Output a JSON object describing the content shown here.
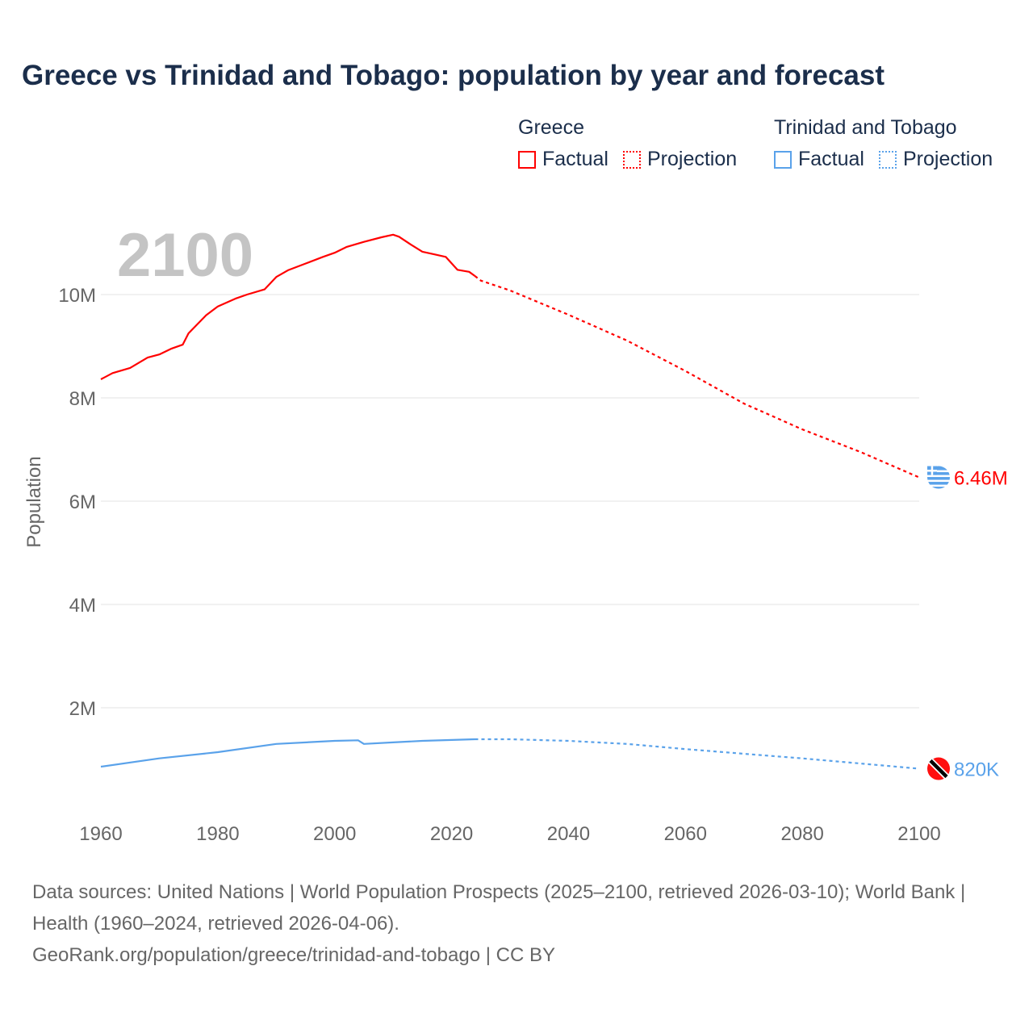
{
  "title": "Greece vs Trinidad and Tobago: population by year and forecast",
  "legend": {
    "groups": [
      {
        "name": "Greece",
        "color": "#ff0000",
        "factual": "Factual",
        "projection": "Projection"
      },
      {
        "name": "Trinidad and Tobago",
        "color": "#5aa2ea",
        "factual": "Factual",
        "projection": "Projection"
      }
    ]
  },
  "footer": {
    "line1": "Data sources: United Nations | World Population Prospects (2025–2100, retrieved 2026-03-10); World Bank | Health (1960–2024, retrieved 2026-04-06).",
    "line2": "GeoRank.org/population/greece/trinidad-and-tobago | CC BY"
  },
  "chart_data": {
    "type": "line",
    "title": "Greece vs Trinidad and Tobago: population by year and forecast",
    "year_label": "2100",
    "xlabel": "",
    "ylabel": "Population",
    "xlim": [
      1960,
      2100
    ],
    "ylim": [
      0,
      11500000
    ],
    "x_ticks": [
      1960,
      1980,
      2000,
      2020,
      2040,
      2060,
      2080,
      2100
    ],
    "x_tick_labels": [
      "1960",
      "1980",
      "2000",
      "2020",
      "2040",
      "2060",
      "2080",
      "2100"
    ],
    "y_ticks": [
      2000000,
      4000000,
      6000000,
      8000000,
      10000000
    ],
    "y_tick_labels": [
      "2M",
      "4M",
      "6M",
      "8M",
      "10M"
    ],
    "grid": true,
    "series": [
      {
        "name": "Greece",
        "color": "#ff0000",
        "end_label": "6.46M",
        "factual": {
          "x": [
            1960,
            1962,
            1965,
            1968,
            1970,
            1972,
            1974,
            1975,
            1978,
            1980,
            1983,
            1985,
            1988,
            1990,
            1992,
            1995,
            1998,
            2000,
            2002,
            2005,
            2008,
            2010,
            2011,
            2013,
            2015,
            2017,
            2019,
            2021,
            2023,
            2024
          ],
          "y": [
            8.36,
            8.48,
            8.58,
            8.78,
            8.84,
            8.95,
            9.03,
            9.25,
            9.6,
            9.77,
            9.92,
            10.0,
            10.1,
            10.34,
            10.47,
            10.6,
            10.73,
            10.81,
            10.92,
            11.02,
            11.11,
            11.16,
            11.12,
            10.97,
            10.83,
            10.78,
            10.73,
            10.48,
            10.44,
            10.36
          ]
        },
        "projection": {
          "x": [
            2024,
            2025,
            2030,
            2040,
            2050,
            2060,
            2070,
            2080,
            2090,
            2100
          ],
          "y": [
            10.36,
            10.27,
            10.08,
            9.61,
            9.11,
            8.52,
            7.89,
            7.39,
            6.95,
            6.46
          ]
        }
      },
      {
        "name": "Trinidad and Tobago",
        "color": "#5aa2ea",
        "end_label": "820K",
        "factual": {
          "x": [
            1960,
            1970,
            1980,
            1990,
            2000,
            2004,
            2005,
            2010,
            2015,
            2024
          ],
          "y": [
            0.86,
            1.02,
            1.14,
            1.3,
            1.36,
            1.37,
            1.3,
            1.33,
            1.36,
            1.39
          ]
        },
        "projection": {
          "x": [
            2024,
            2030,
            2040,
            2050,
            2060,
            2070,
            2080,
            2090,
            2100
          ],
          "y": [
            1.39,
            1.39,
            1.36,
            1.3,
            1.2,
            1.11,
            1.02,
            0.92,
            0.82
          ]
        }
      }
    ],
    "y_unit": "millions"
  }
}
